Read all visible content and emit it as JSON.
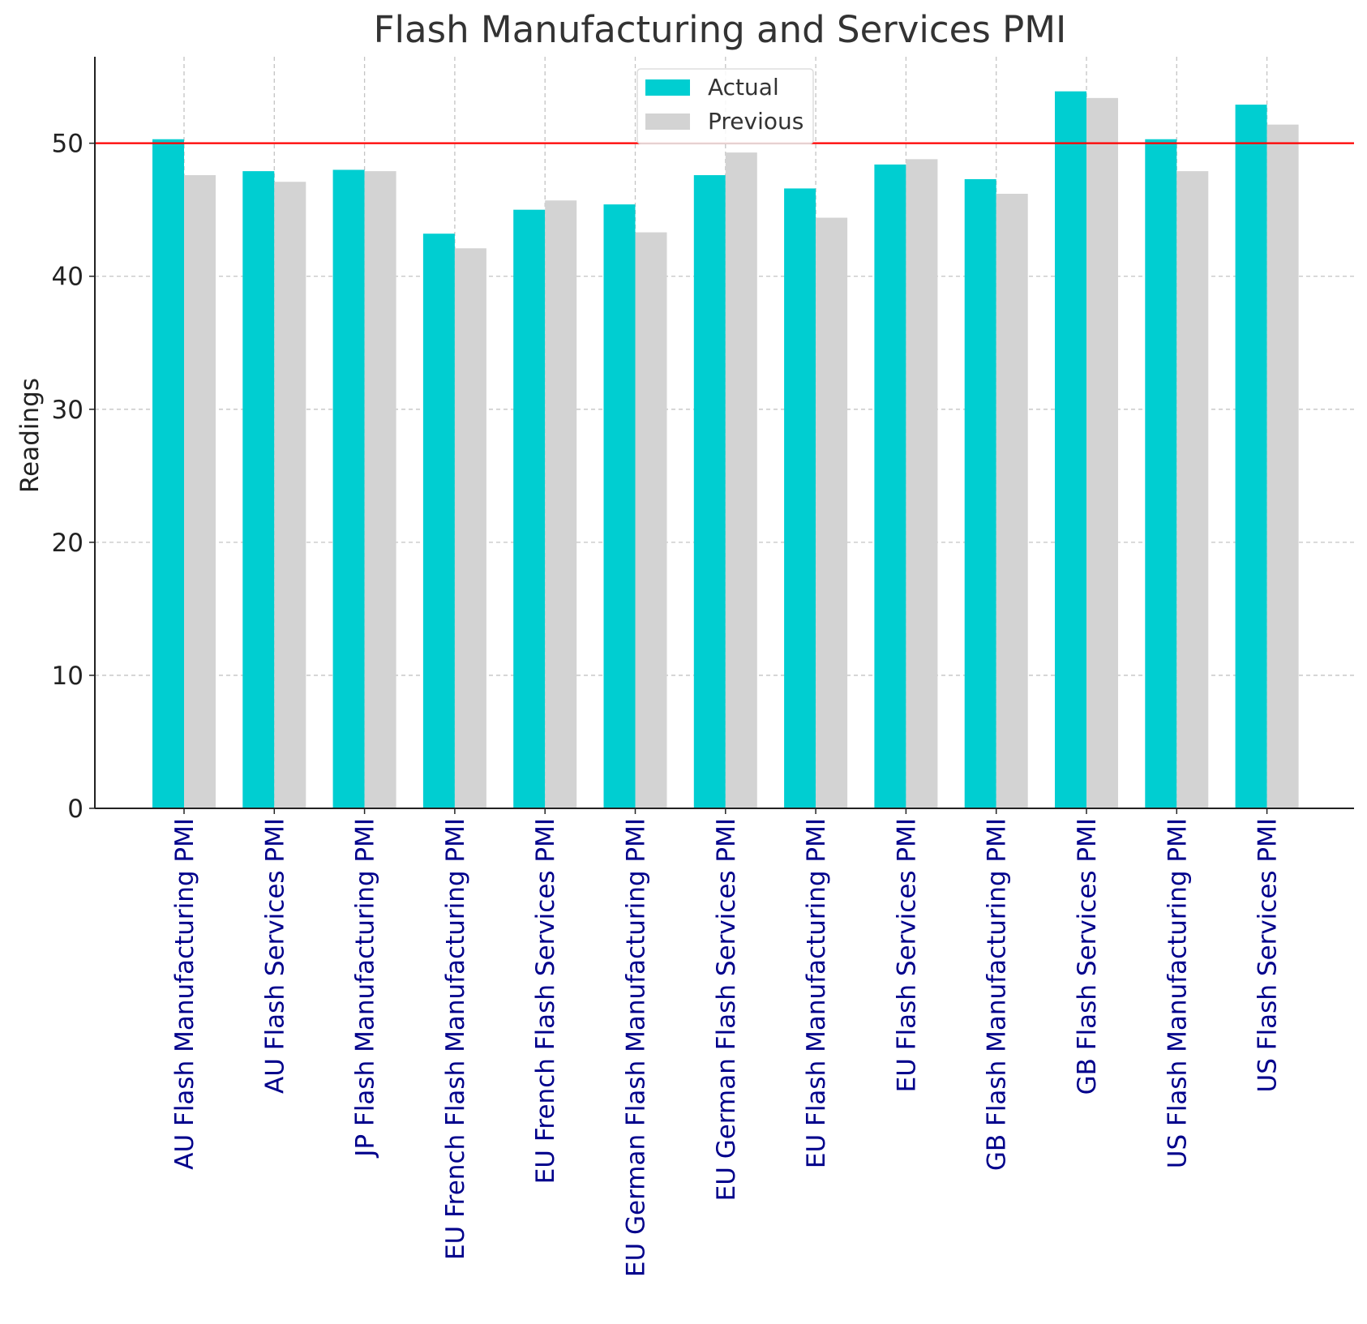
{
  "chart_data": {
    "type": "bar",
    "title": "Flash Manufacturing and Services PMI",
    "xlabel": "",
    "ylabel": "Readings",
    "ylim": [
      0,
      56.5
    ],
    "yticks": [
      0,
      10,
      20,
      30,
      40,
      50
    ],
    "grid": true,
    "legend_position": "top-center",
    "reference_line": {
      "y": 50,
      "color": "#ff0000"
    },
    "categories": [
      "AU Flash Manufacturing PMI",
      "AU Flash Services PMI",
      "JP Flash Manufacturing PMI",
      "EU French Flash Manufacturing PMI",
      "EU French Flash Services PMI",
      "EU German Flash Manufacturing PMI",
      "EU German Flash Services PMI",
      "EU Flash Manufacturing PMI",
      "EU Flash Services PMI",
      "GB Flash Manufacturing PMI",
      "GB Flash Services PMI",
      "US Flash Manufacturing PMI",
      "US Flash Services PMI"
    ],
    "series": [
      {
        "name": "Actual",
        "color": "#00ced1",
        "values": [
          50.3,
          47.9,
          48.0,
          43.2,
          45.0,
          45.4,
          47.6,
          46.6,
          48.4,
          47.3,
          53.9,
          50.3,
          52.9
        ]
      },
      {
        "name": "Previous",
        "color": "#d3d3d3",
        "values": [
          47.6,
          47.1,
          47.9,
          42.1,
          45.7,
          43.3,
          49.3,
          44.4,
          48.8,
          46.2,
          53.4,
          47.9,
          51.4
        ]
      }
    ]
  }
}
